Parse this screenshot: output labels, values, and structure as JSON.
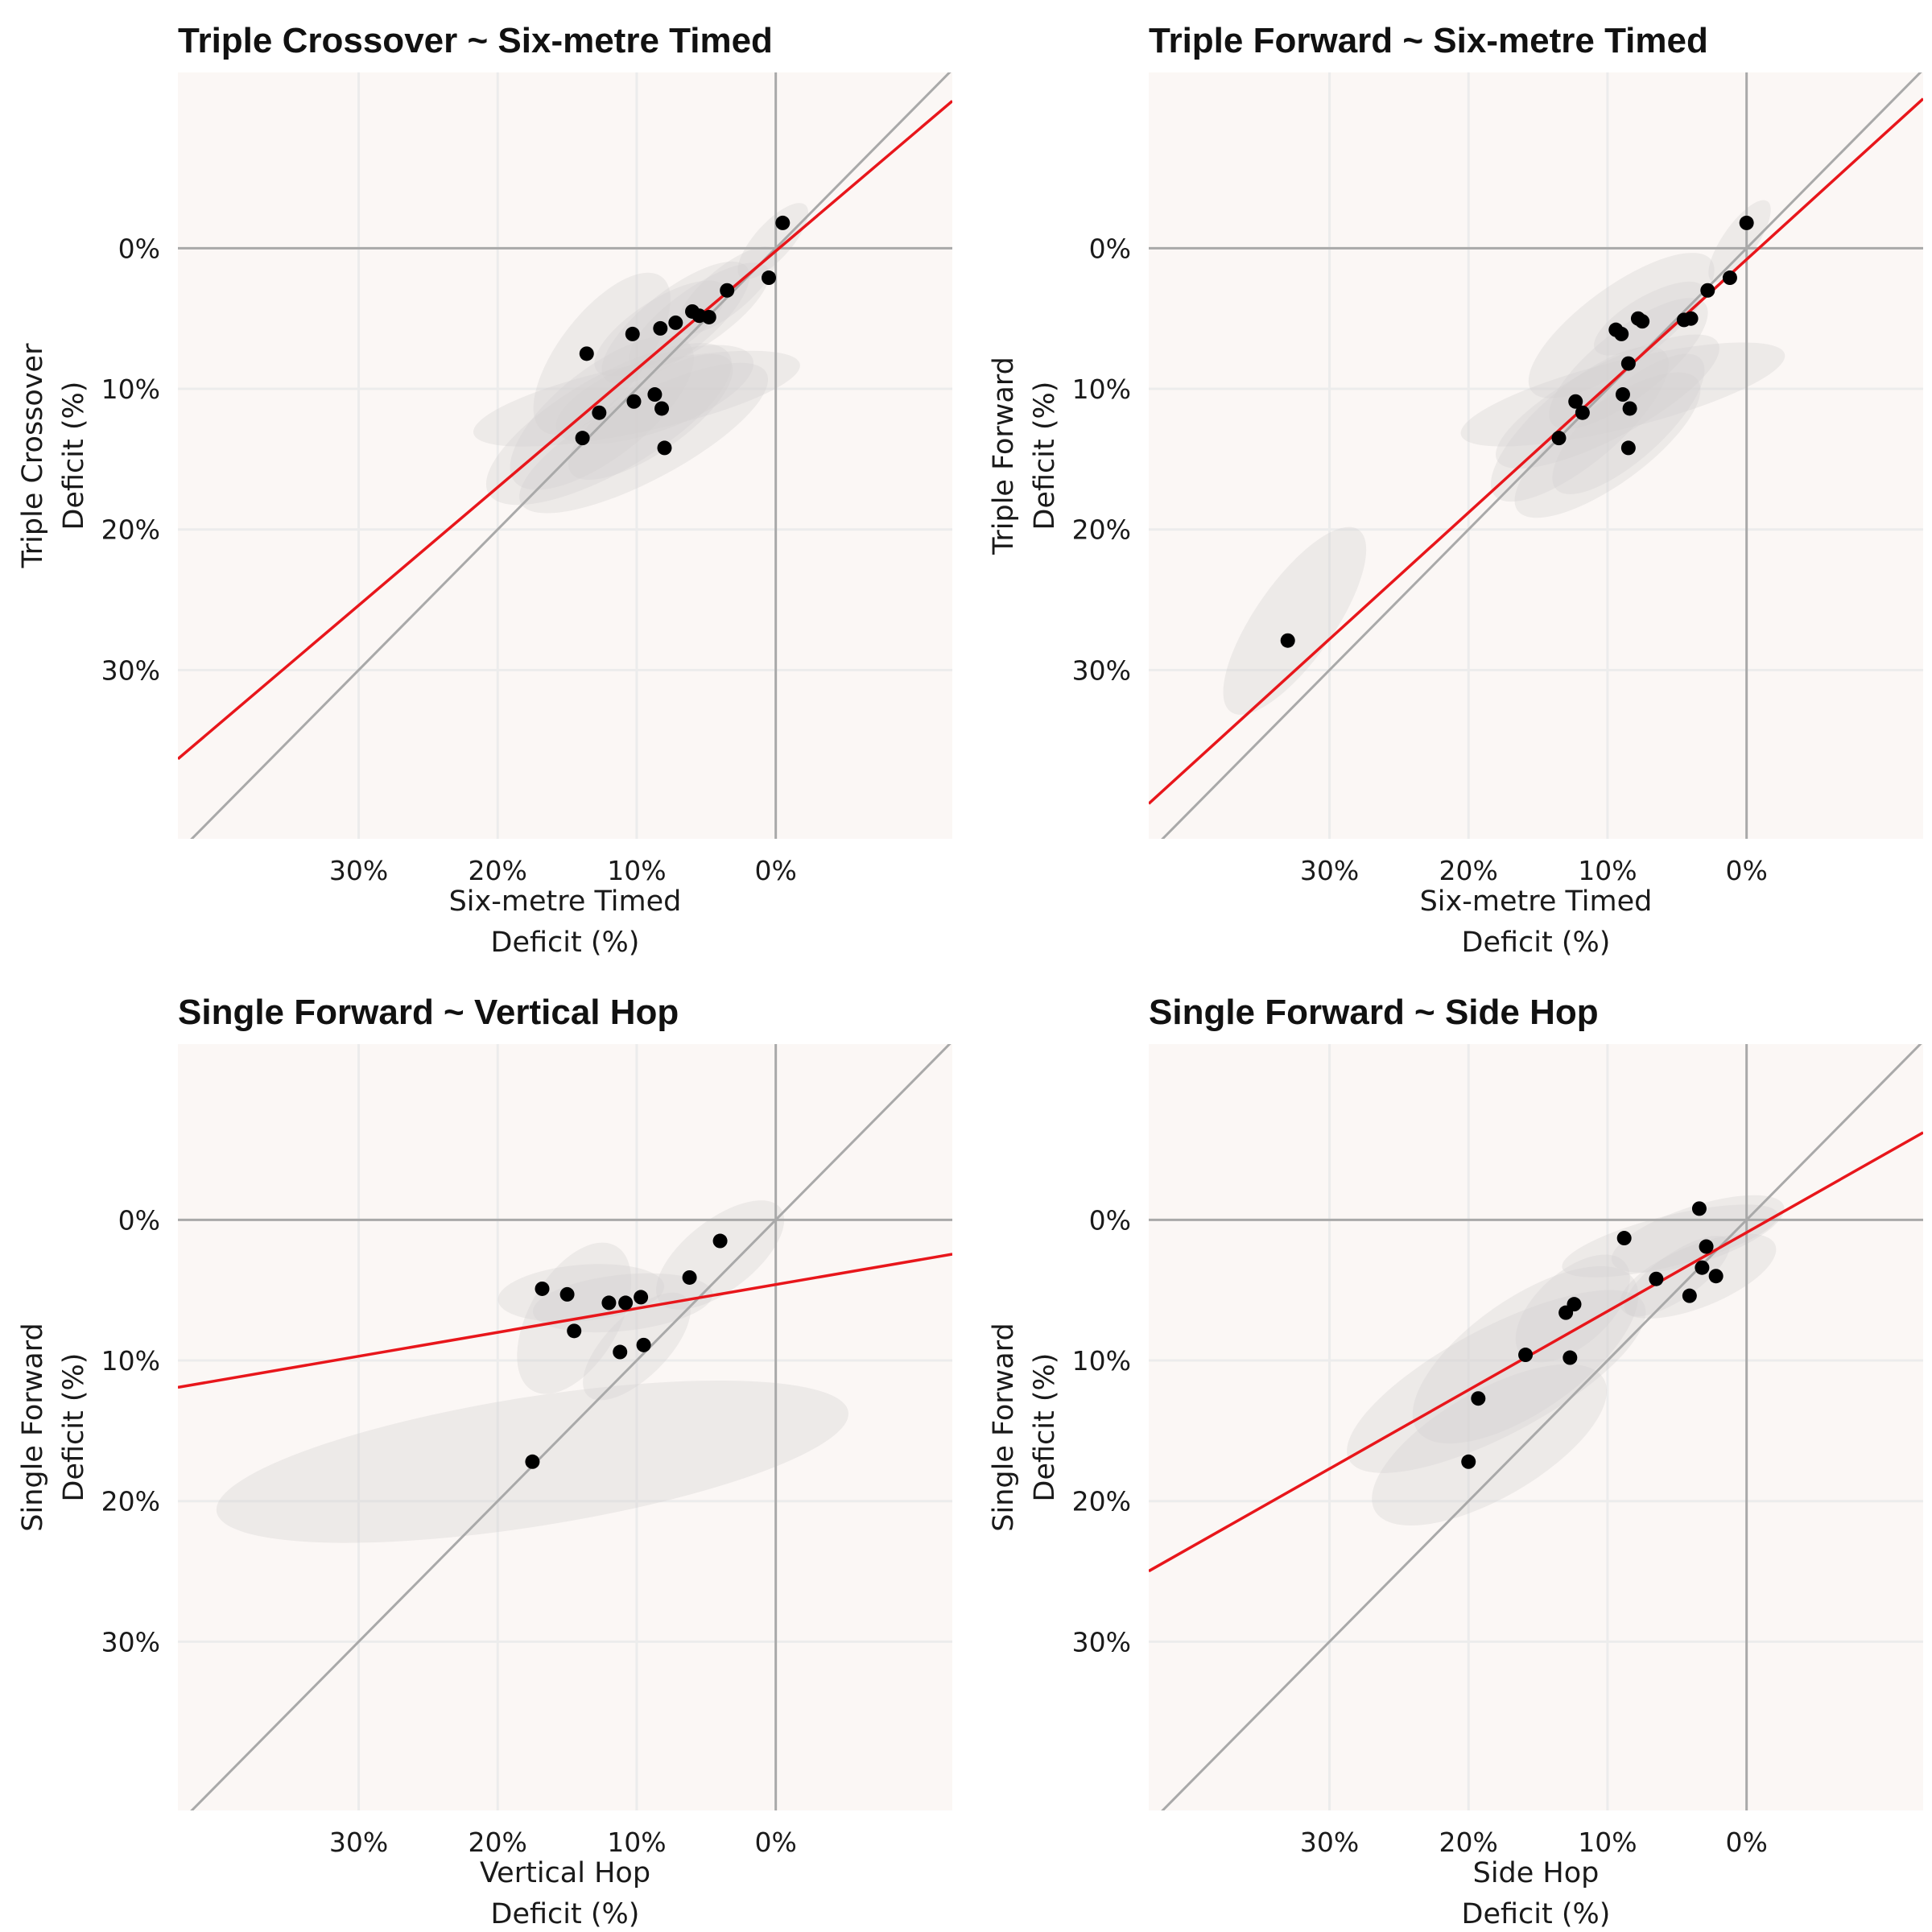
{
  "colors": {
    "panel_bg": "#fbf7f5",
    "grid": "#ececec",
    "zero_line": "#a9a9a9",
    "identity_line": "#a9a9a9",
    "fit_line": "#e8161b",
    "point": "#000000",
    "ellipse": "#d4d2d0"
  },
  "chart_data": [
    {
      "type": "scatter",
      "title": "Triple Crossover ~ Six-metre Timed",
      "xlabel": [
        "Six-metre Timed",
        "Deficit (%)"
      ],
      "ylabel": [
        "Triple Crossover",
        "Deficit (%)"
      ],
      "x_reversed": true,
      "y_reversed": true,
      "xlim": [
        -12.7,
        43
      ],
      "ylim": [
        -12.5,
        42
      ],
      "xticks": [
        30,
        20,
        10,
        0
      ],
      "yticks": [
        0,
        10,
        20,
        30
      ],
      "xtick_labels": [
        "30%",
        "20%",
        "10%",
        "0%"
      ],
      "ytick_labels": [
        "0%",
        "10%",
        "20%",
        "30%"
      ],
      "grid": true,
      "identity_line": true,
      "fit_line": {
        "intercept": 0.2,
        "slope": 0.84
      },
      "points": [
        {
          "x": -0.5,
          "y": -1.8
        },
        {
          "x": 0.5,
          "y": 2.1
        },
        {
          "x": 3.5,
          "y": 3.0
        },
        {
          "x": 4.8,
          "y": 4.9
        },
        {
          "x": 5.5,
          "y": 4.8
        },
        {
          "x": 6.0,
          "y": 4.5
        },
        {
          "x": 7.2,
          "y": 5.3
        },
        {
          "x": 8.3,
          "y": 5.7
        },
        {
          "x": 10.3,
          "y": 6.1
        },
        {
          "x": 13.6,
          "y": 7.5
        },
        {
          "x": 8.7,
          "y": 10.4
        },
        {
          "x": 8.2,
          "y": 11.4
        },
        {
          "x": 10.2,
          "y": 10.9
        },
        {
          "x": 12.7,
          "y": 11.7
        },
        {
          "x": 13.9,
          "y": 13.5
        },
        {
          "x": 8.0,
          "y": 14.2
        }
      ],
      "ellipses": [
        {
          "cx": 0.2,
          "cy": -0.5,
          "rx": 3.5,
          "ry": 1.3,
          "angle": -48
        },
        {
          "cx": 3.5,
          "cy": 3.0,
          "rx": 4.5,
          "ry": 1.6,
          "angle": -40
        },
        {
          "cx": 5.5,
          "cy": 4.8,
          "rx": 6.0,
          "ry": 2.0,
          "angle": -35
        },
        {
          "cx": 7.2,
          "cy": 5.3,
          "rx": 6.5,
          "ry": 2.3,
          "angle": -38
        },
        {
          "cx": 8.3,
          "cy": 5.7,
          "rx": 5.5,
          "ry": 2.0,
          "angle": -33
        },
        {
          "cx": 12.5,
          "cy": 7.5,
          "rx": 7.0,
          "ry": 3.0,
          "angle": -52
        },
        {
          "cx": 8.7,
          "cy": 10.4,
          "rx": 7.5,
          "ry": 2.6,
          "angle": -20
        },
        {
          "cx": 10.0,
          "cy": 10.7,
          "rx": 12.0,
          "ry": 2.4,
          "angle": -12
        },
        {
          "cx": 12.5,
          "cy": 11.7,
          "rx": 8.0,
          "ry": 3.2,
          "angle": -38
        },
        {
          "cx": 12.0,
          "cy": 12.5,
          "rx": 10.0,
          "ry": 3.4,
          "angle": -30
        },
        {
          "cx": 9.5,
          "cy": 13.5,
          "rx": 10.0,
          "ry": 3.0,
          "angle": -28
        },
        {
          "cx": 9.0,
          "cy": 12.0,
          "rx": 7.0,
          "ry": 2.5,
          "angle": -35
        }
      ]
    },
    {
      "type": "scatter",
      "title": "Triple Forward ~ Six-metre Timed",
      "xlabel": [
        "Six-metre Timed",
        "Deficit (%)"
      ],
      "ylabel": [
        "Triple Forward",
        "Deficit (%)"
      ],
      "x_reversed": true,
      "y_reversed": true,
      "xlim": [
        -12.7,
        43
      ],
      "ylim": [
        -12.5,
        42
      ],
      "xticks": [
        30,
        20,
        10,
        0
      ],
      "yticks": [
        0,
        10,
        20,
        30
      ],
      "xtick_labels": [
        "30%",
        "20%",
        "10%",
        "0%"
      ],
      "ytick_labels": [
        "0%",
        "10%",
        "20%",
        "30%"
      ],
      "grid": true,
      "identity_line": true,
      "fit_line": {
        "intercept": 0.8,
        "slope": 0.9
      },
      "points": [
        {
          "x": 0.0,
          "y": -1.8
        },
        {
          "x": 1.2,
          "y": 2.1
        },
        {
          "x": 2.8,
          "y": 3.0
        },
        {
          "x": 4.0,
          "y": 5.0
        },
        {
          "x": 4.5,
          "y": 5.1
        },
        {
          "x": 7.5,
          "y": 5.2
        },
        {
          "x": 7.8,
          "y": 5.0
        },
        {
          "x": 9.4,
          "y": 5.8
        },
        {
          "x": 9.0,
          "y": 6.1
        },
        {
          "x": 8.5,
          "y": 8.2
        },
        {
          "x": 8.9,
          "y": 10.4
        },
        {
          "x": 8.4,
          "y": 11.4
        },
        {
          "x": 12.3,
          "y": 10.9
        },
        {
          "x": 11.8,
          "y": 11.7
        },
        {
          "x": 13.5,
          "y": 13.5
        },
        {
          "x": 8.5,
          "y": 14.2
        },
        {
          "x": 33.0,
          "y": 27.9
        }
      ],
      "ellipses": [
        {
          "cx": 0.5,
          "cy": -0.5,
          "rx": 3.5,
          "ry": 1.2,
          "angle": -55
        },
        {
          "cx": 9.0,
          "cy": 5.5,
          "rx": 8.0,
          "ry": 2.8,
          "angle": -36
        },
        {
          "cx": 7.0,
          "cy": 5.0,
          "rx": 4.5,
          "ry": 1.6,
          "angle": -30
        },
        {
          "cx": 8.5,
          "cy": 8.2,
          "rx": 7.0,
          "ry": 2.4,
          "angle": -38
        },
        {
          "cx": 8.9,
          "cy": 10.4,
          "rx": 12.0,
          "ry": 2.4,
          "angle": -14
        },
        {
          "cx": 10.0,
          "cy": 10.9,
          "rx": 9.0,
          "ry": 2.6,
          "angle": -28
        },
        {
          "cx": 12.0,
          "cy": 12.5,
          "rx": 8.0,
          "ry": 2.8,
          "angle": -40
        },
        {
          "cx": 10.0,
          "cy": 14.0,
          "rx": 8.0,
          "ry": 2.8,
          "angle": -36
        },
        {
          "cx": 8.5,
          "cy": 12.5,
          "rx": 7.0,
          "ry": 2.5,
          "angle": -42
        },
        {
          "cx": 32.5,
          "cy": 26.5,
          "rx": 8.0,
          "ry": 2.8,
          "angle": -55
        }
      ]
    },
    {
      "type": "scatter",
      "title": "Single Forward ~ Vertical Hop",
      "xlabel": [
        "Vertical Hop",
        "Deficit (%)"
      ],
      "ylabel": [
        "Single Forward",
        "Deficit (%)"
      ],
      "x_reversed": true,
      "y_reversed": true,
      "xlim": [
        -12.7,
        43
      ],
      "ylim": [
        -12.5,
        42
      ],
      "xticks": [
        30,
        20,
        10,
        0
      ],
      "yticks": [
        0,
        10,
        20,
        30
      ],
      "xtick_labels": [
        "30%",
        "20%",
        "10%",
        "0%"
      ],
      "ytick_labels": [
        "0%",
        "10%",
        "20%",
        "30%"
      ],
      "grid": true,
      "identity_line": true,
      "fit_line": {
        "intercept": 4.6,
        "slope": 0.17
      },
      "points": [
        {
          "x": 4.0,
          "y": 1.5
        },
        {
          "x": 6.2,
          "y": 4.1
        },
        {
          "x": 16.8,
          "y": 4.9
        },
        {
          "x": 15.0,
          "y": 5.3
        },
        {
          "x": 12.0,
          "y": 5.9
        },
        {
          "x": 10.8,
          "y": 5.9
        },
        {
          "x": 9.7,
          "y": 5.5
        },
        {
          "x": 14.5,
          "y": 7.9
        },
        {
          "x": 9.5,
          "y": 8.9
        },
        {
          "x": 11.2,
          "y": 9.4
        },
        {
          "x": 17.5,
          "y": 17.2
        }
      ],
      "ellipses": [
        {
          "cx": 4.0,
          "cy": 2.5,
          "rx": 5.5,
          "ry": 2.5,
          "angle": -38
        },
        {
          "cx": 14.0,
          "cy": 5.2,
          "rx": 6.0,
          "ry": 2.0,
          "angle": -5
        },
        {
          "cx": 11.0,
          "cy": 5.9,
          "rx": 6.5,
          "ry": 2.0,
          "angle": -6
        },
        {
          "cx": 14.5,
          "cy": 7.0,
          "rx": 6.0,
          "ry": 3.2,
          "angle": -60
        },
        {
          "cx": 10.0,
          "cy": 9.0,
          "rx": 5.0,
          "ry": 2.2,
          "angle": -45
        },
        {
          "cx": 17.5,
          "cy": 17.2,
          "rx": 23.0,
          "ry": 4.6,
          "angle": -9
        }
      ]
    },
    {
      "type": "scatter",
      "title": "Single Forward ~ Side Hop",
      "xlabel": [
        "Side Hop",
        "Deficit (%)"
      ],
      "ylabel": [
        "Single Forward",
        "Deficit (%)"
      ],
      "x_reversed": true,
      "y_reversed": true,
      "xlim": [
        -12.7,
        43
      ],
      "ylim": [
        -12.5,
        42
      ],
      "xticks": [
        30,
        20,
        10,
        0
      ],
      "yticks": [
        0,
        10,
        20,
        30
      ],
      "xtick_labels": [
        "30%",
        "20%",
        "10%",
        "0%"
      ],
      "ytick_labels": [
        "0%",
        "10%",
        "20%",
        "30%"
      ],
      "grid": true,
      "identity_line": true,
      "fit_line": {
        "intercept": 0.9,
        "slope": 0.56
      },
      "points": [
        {
          "x": 3.4,
          "y": -0.8
        },
        {
          "x": 8.8,
          "y": 1.3
        },
        {
          "x": 2.9,
          "y": 1.9
        },
        {
          "x": 3.2,
          "y": 3.4
        },
        {
          "x": 2.2,
          "y": 4.0
        },
        {
          "x": 4.1,
          "y": 5.4
        },
        {
          "x": 6.5,
          "y": 4.2
        },
        {
          "x": 12.4,
          "y": 6.0
        },
        {
          "x": 13.0,
          "y": 6.6
        },
        {
          "x": 15.9,
          "y": 9.6
        },
        {
          "x": 12.7,
          "y": 9.8
        },
        {
          "x": 19.3,
          "y": 12.7
        },
        {
          "x": 20.0,
          "y": 17.2
        }
      ],
      "ellipses": [
        {
          "cx": 3.5,
          "cy": 1.0,
          "rx": 6.5,
          "ry": 2.0,
          "angle": -18
        },
        {
          "cx": 5.5,
          "cy": 1.5,
          "rx": 8.0,
          "ry": 1.8,
          "angle": -14
        },
        {
          "cx": 3.5,
          "cy": 4.0,
          "rx": 6.0,
          "ry": 2.2,
          "angle": -22
        },
        {
          "cx": 5.0,
          "cy": 4.0,
          "rx": 4.5,
          "ry": 1.6,
          "angle": -35
        },
        {
          "cx": 12.5,
          "cy": 6.3,
          "rx": 5.0,
          "ry": 2.6,
          "angle": -42
        },
        {
          "cx": 15.9,
          "cy": 9.6,
          "rx": 9.5,
          "ry": 4.0,
          "angle": -35
        },
        {
          "cx": 18.0,
          "cy": 11.5,
          "rx": 12.0,
          "ry": 3.8,
          "angle": -28
        },
        {
          "cx": 18.5,
          "cy": 16.0,
          "rx": 9.5,
          "ry": 3.8,
          "angle": -30
        }
      ]
    }
  ]
}
